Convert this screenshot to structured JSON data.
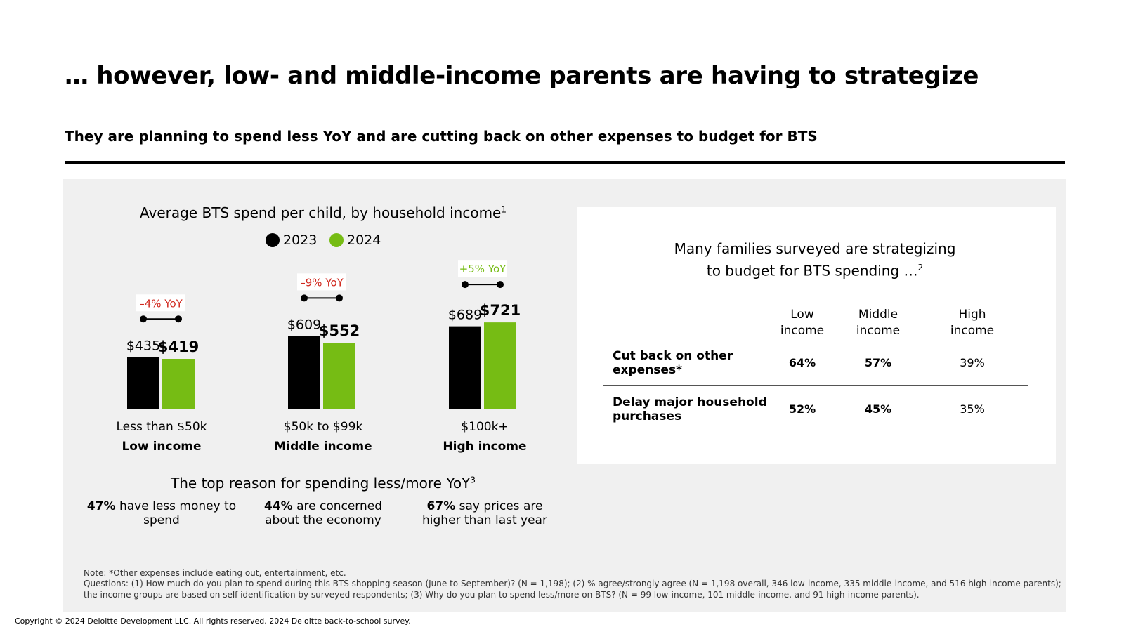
{
  "header": {
    "title": "… however, low- and middle-income parents are having to strategize",
    "subtitle": "They are planning to spend less YoY and are cutting back on other expenses to budget for BTS"
  },
  "chart_data": {
    "type": "bar",
    "title": "Average BTS spend per child, by household income",
    "title_sup": "1",
    "categories": [
      "Less than $50k",
      "$50k to $99k",
      "$100k+"
    ],
    "category_groups": [
      "Low income",
      "Middle income",
      "High income"
    ],
    "series": [
      {
        "name": "2023",
        "values": [
          435,
          609,
          689
        ],
        "labels": [
          "$435",
          "$609",
          "$689"
        ],
        "color": "#000000"
      },
      {
        "name": "2024",
        "values": [
          419,
          552,
          721
        ],
        "labels": [
          "$419",
          "$552",
          "$721"
        ],
        "color": "#76bc14"
      }
    ],
    "yoy": [
      "–4% YoY",
      "–9% YoY",
      "+5% YoY"
    ],
    "yoy_colors": [
      "#d0271d",
      "#d0271d",
      "#76bc14"
    ],
    "ylim": [
      0,
      800
    ],
    "grid": false,
    "legend_placement": "top-center"
  },
  "reasons": {
    "title": "The top reason for spending less/more YoY",
    "title_sup": "3",
    "items": [
      {
        "pct": "47%",
        "text": " have less money to spend"
      },
      {
        "pct": "44%",
        "text": " are concerned about the economy"
      },
      {
        "pct": "67%",
        "text": " say prices are higher than last year"
      }
    ]
  },
  "table": {
    "title_line1": "Many families surveyed are strategizing",
    "title_line2": "to budget for BTS spending …",
    "title_sup": "2",
    "columns": [
      {
        "line1": "Low",
        "line2": "income"
      },
      {
        "line1": "Middle",
        "line2": "income"
      },
      {
        "line1": "High",
        "line2": "income"
      }
    ],
    "rows": [
      {
        "label": "Cut back on other expenses*",
        "values": [
          "64%",
          "57%",
          "39%"
        ]
      },
      {
        "label": "Delay major household purchases",
        "values": [
          "52%",
          "45%",
          "35%"
        ]
      }
    ]
  },
  "notes": {
    "line1": "Note: *Other expenses include eating out, entertainment, etc.",
    "line2": "Questions: (1) How much do you plan to spend during this BTS shopping season (June to September)? (N = 1,198); (2) % agree/strongly agree (N = 1,198 overall, 346 low-income, 335 middle-income, and 516 high-income parents);",
    "line3": "the income groups are based on self-identification by surveyed respondents; (3) Why do you plan to spend less/more on BTS? (N = 99 low-income, 101 middle-income, and 91 high-income parents).",
    "copyright": "Copyright © 2024 Deloitte Development LLC. All rights reserved. 2024 Deloitte back-to-school survey."
  },
  "colors": {
    "accent_green": "#76bc14",
    "negative_red": "#d0271d",
    "panel_bg": "#f0f0f0"
  }
}
